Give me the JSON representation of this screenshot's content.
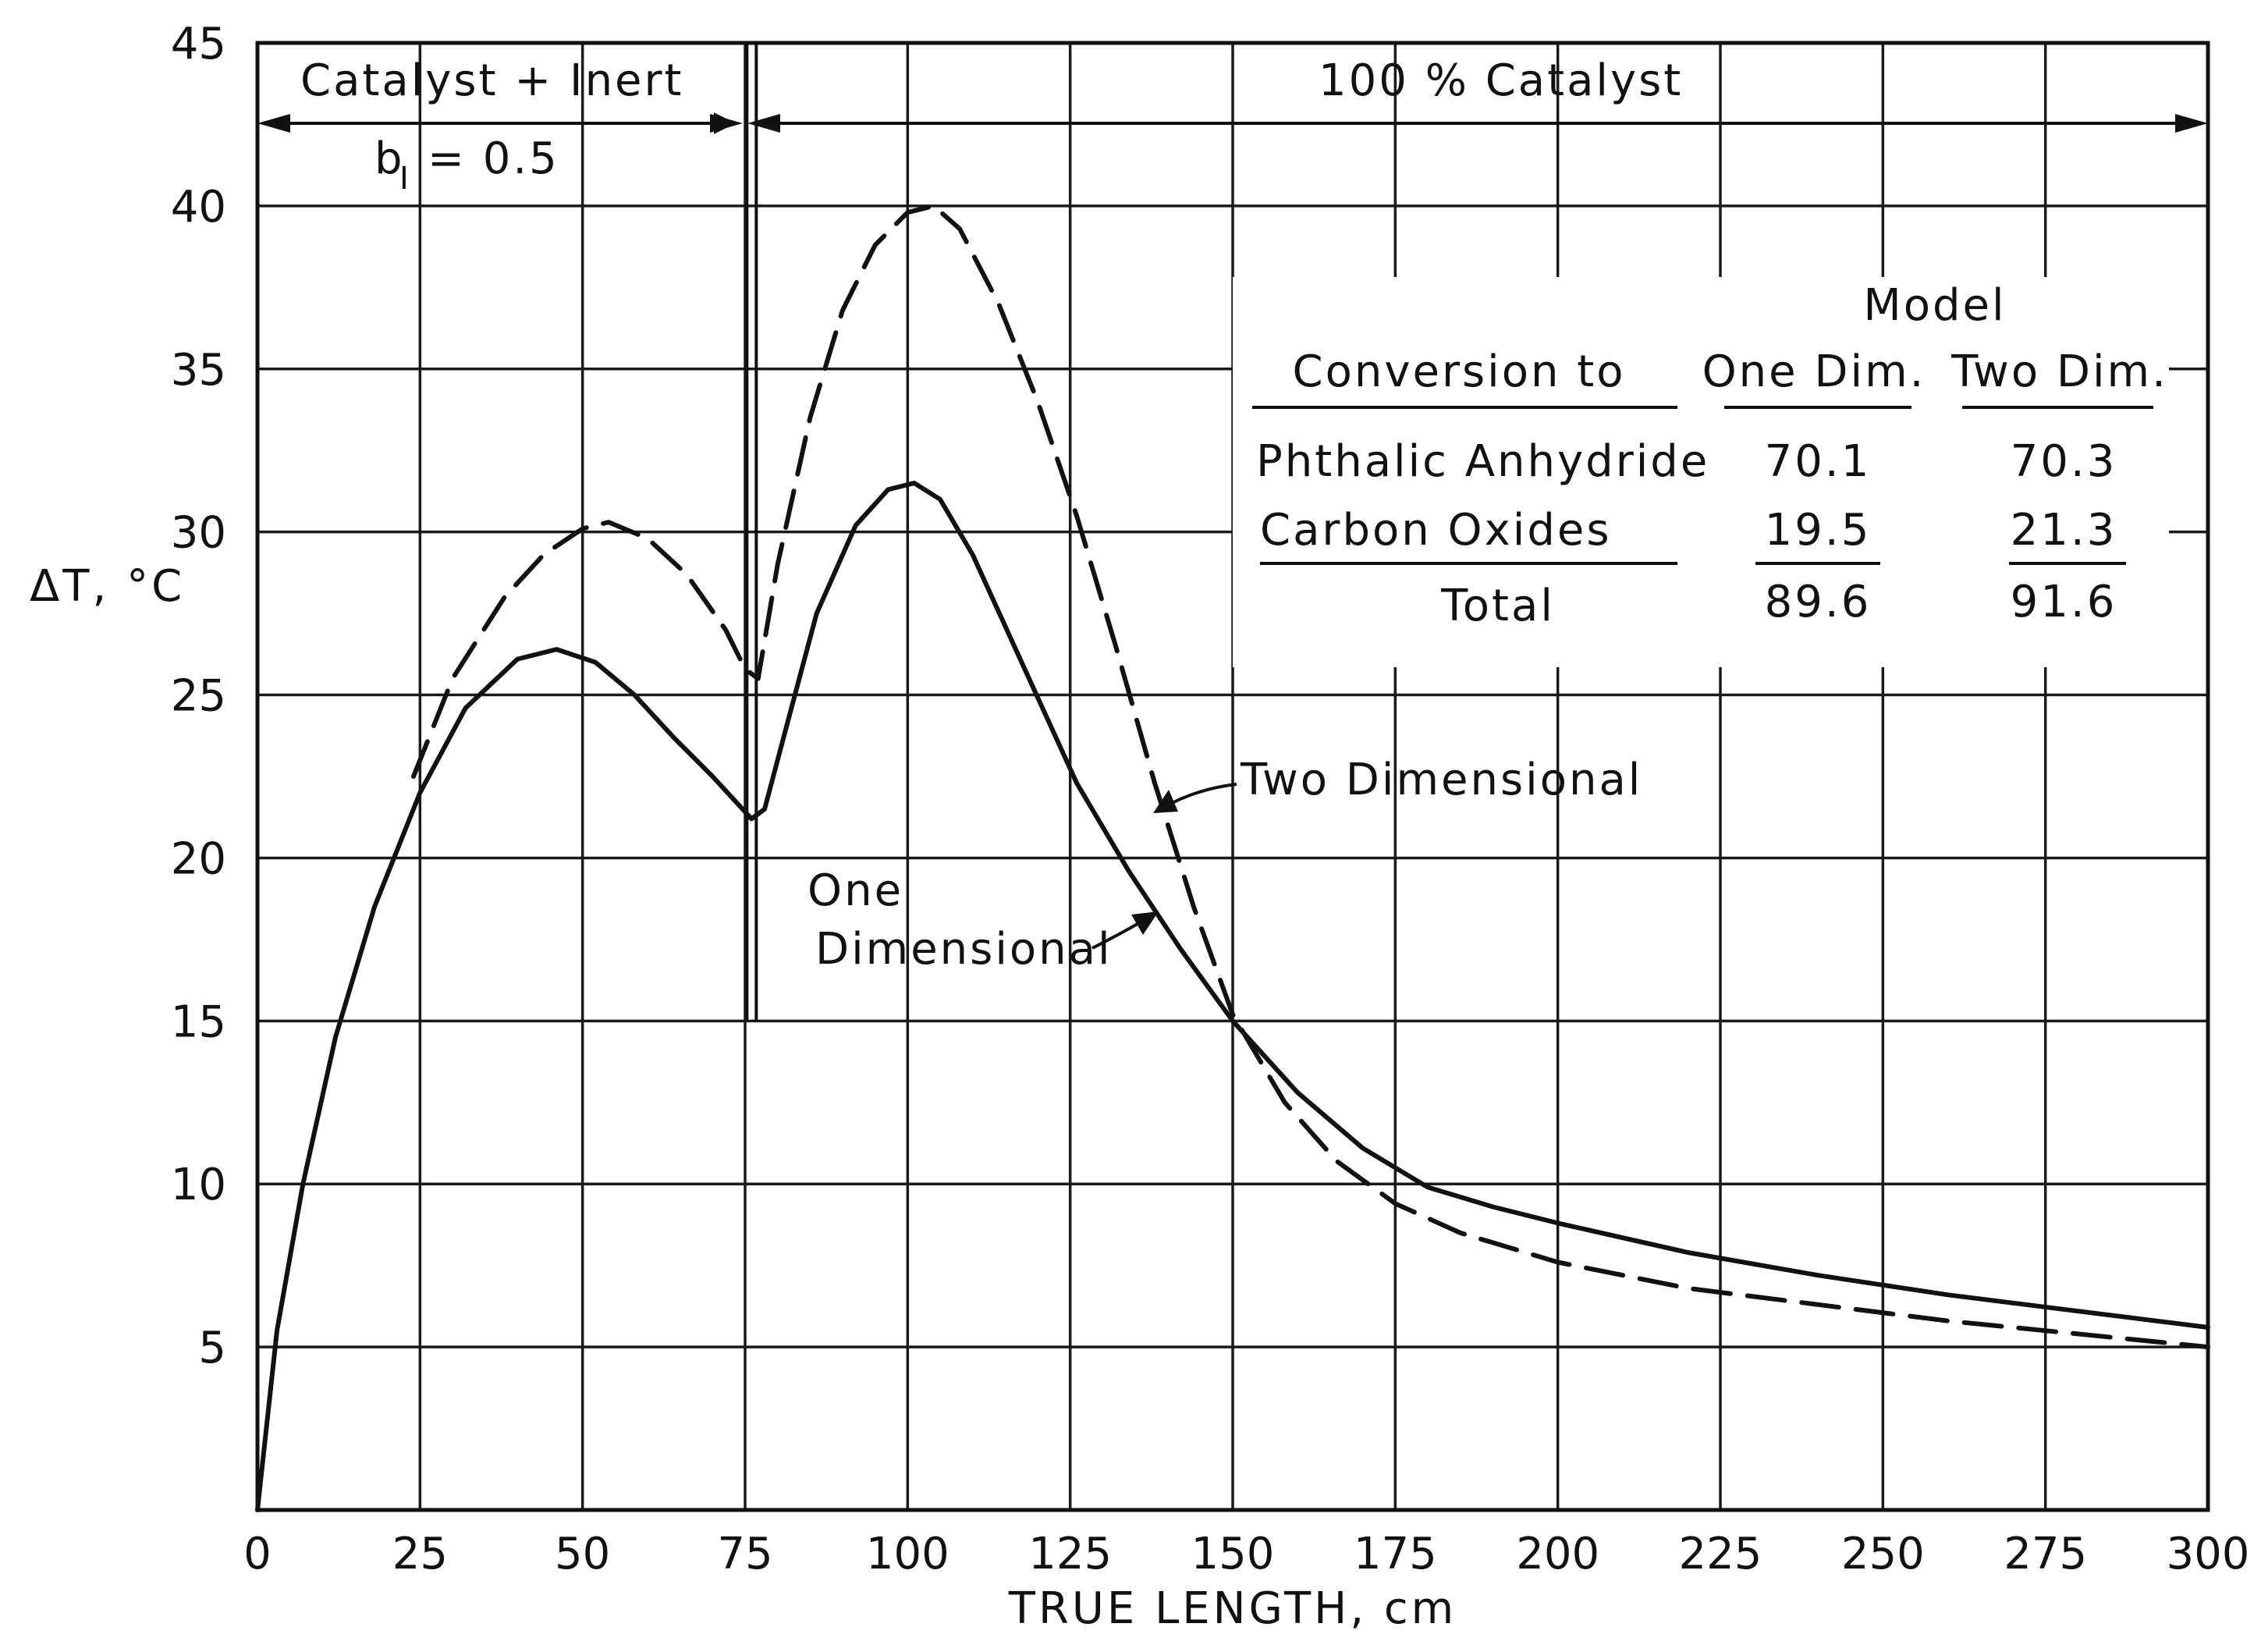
{
  "chart_data": {
    "type": "line",
    "xlabel": "TRUE LENGTH, cm",
    "ylabel": "ΔT, °C",
    "xlim": [
      0,
      300
    ],
    "ylim": [
      0,
      45
    ],
    "x_ticks": [
      "0",
      "25",
      "50",
      "75",
      "100",
      "125",
      "150",
      "175",
      "200",
      "225",
      "250",
      "275",
      "300"
    ],
    "y_ticks": [
      "5",
      "10",
      "15",
      "20",
      "25",
      "30",
      "35",
      "40",
      "45"
    ],
    "grid": true,
    "series": [
      {
        "name": "One Dimensional",
        "style": "solid",
        "x": [
          0,
          3,
          7,
          12,
          18,
          25,
          32,
          40,
          46,
          52,
          58,
          64,
          70,
          76,
          78,
          82,
          86,
          92,
          97,
          101,
          105,
          110,
          118,
          126,
          134,
          142,
          150,
          160,
          170,
          180,
          190,
          200,
          220,
          240,
          260,
          280,
          300
        ],
        "y": [
          0,
          5.5,
          10,
          14.5,
          18.5,
          22,
          24.6,
          26.1,
          26.4,
          26,
          25,
          23.7,
          22.5,
          21.2,
          21.5,
          24.5,
          27.5,
          30.2,
          31.3,
          31.5,
          31.0,
          29.3,
          25.8,
          22.3,
          19.6,
          17.2,
          15.0,
          12.8,
          11.1,
          9.9,
          9.3,
          8.8,
          7.9,
          7.2,
          6.6,
          6.1,
          5.6
        ]
      },
      {
        "name": "Two Dimensional",
        "style": "dashed",
        "x": [
          24,
          30,
          38,
          44,
          50,
          54,
          60,
          66,
          72,
          75,
          77,
          80,
          85,
          90,
          95,
          100,
          104,
          108,
          114,
          120,
          126,
          132,
          138,
          144,
          150,
          158,
          166,
          175,
          185,
          200,
          220,
          240,
          260,
          280,
          300
        ],
        "y": [
          22.5,
          25.5,
          28,
          29.3,
          30.1,
          30.3,
          29.8,
          28.7,
          27,
          25.8,
          25.5,
          29,
          33.5,
          36.8,
          38.8,
          39.8,
          40.0,
          39.3,
          37.0,
          34.0,
          30.5,
          26.5,
          22.3,
          18.5,
          15.2,
          12.5,
          10.7,
          9.4,
          8.5,
          7.6,
          6.8,
          6.3,
          5.8,
          5.4,
          5.0
        ]
      }
    ],
    "annotations": {
      "region_left": "Catalyst + Inert",
      "region_left_sub_b": "b",
      "region_left_sub_i": "I",
      "region_left_sub_value": "= 0.5",
      "region_right": "100 % Catalyst",
      "region_boundary_x": 76,
      "label_one_dim_line1": "One",
      "label_one_dim_line2": "Dimensional",
      "label_two_dim": "Two Dimensional"
    },
    "table": {
      "model_header": "Model",
      "col0_header": "Conversion to",
      "col1_header": "One Dim.",
      "col2_header": "Two Dim.",
      "rows": [
        {
          "label": "Phthalic Anhydride",
          "one": "70.1",
          "two": "70.3"
        },
        {
          "label": "Carbon Oxides",
          "one": "19.5",
          "two": "21.3"
        },
        {
          "label": "Total",
          "one": "89.6",
          "two": "91.6"
        }
      ]
    }
  }
}
